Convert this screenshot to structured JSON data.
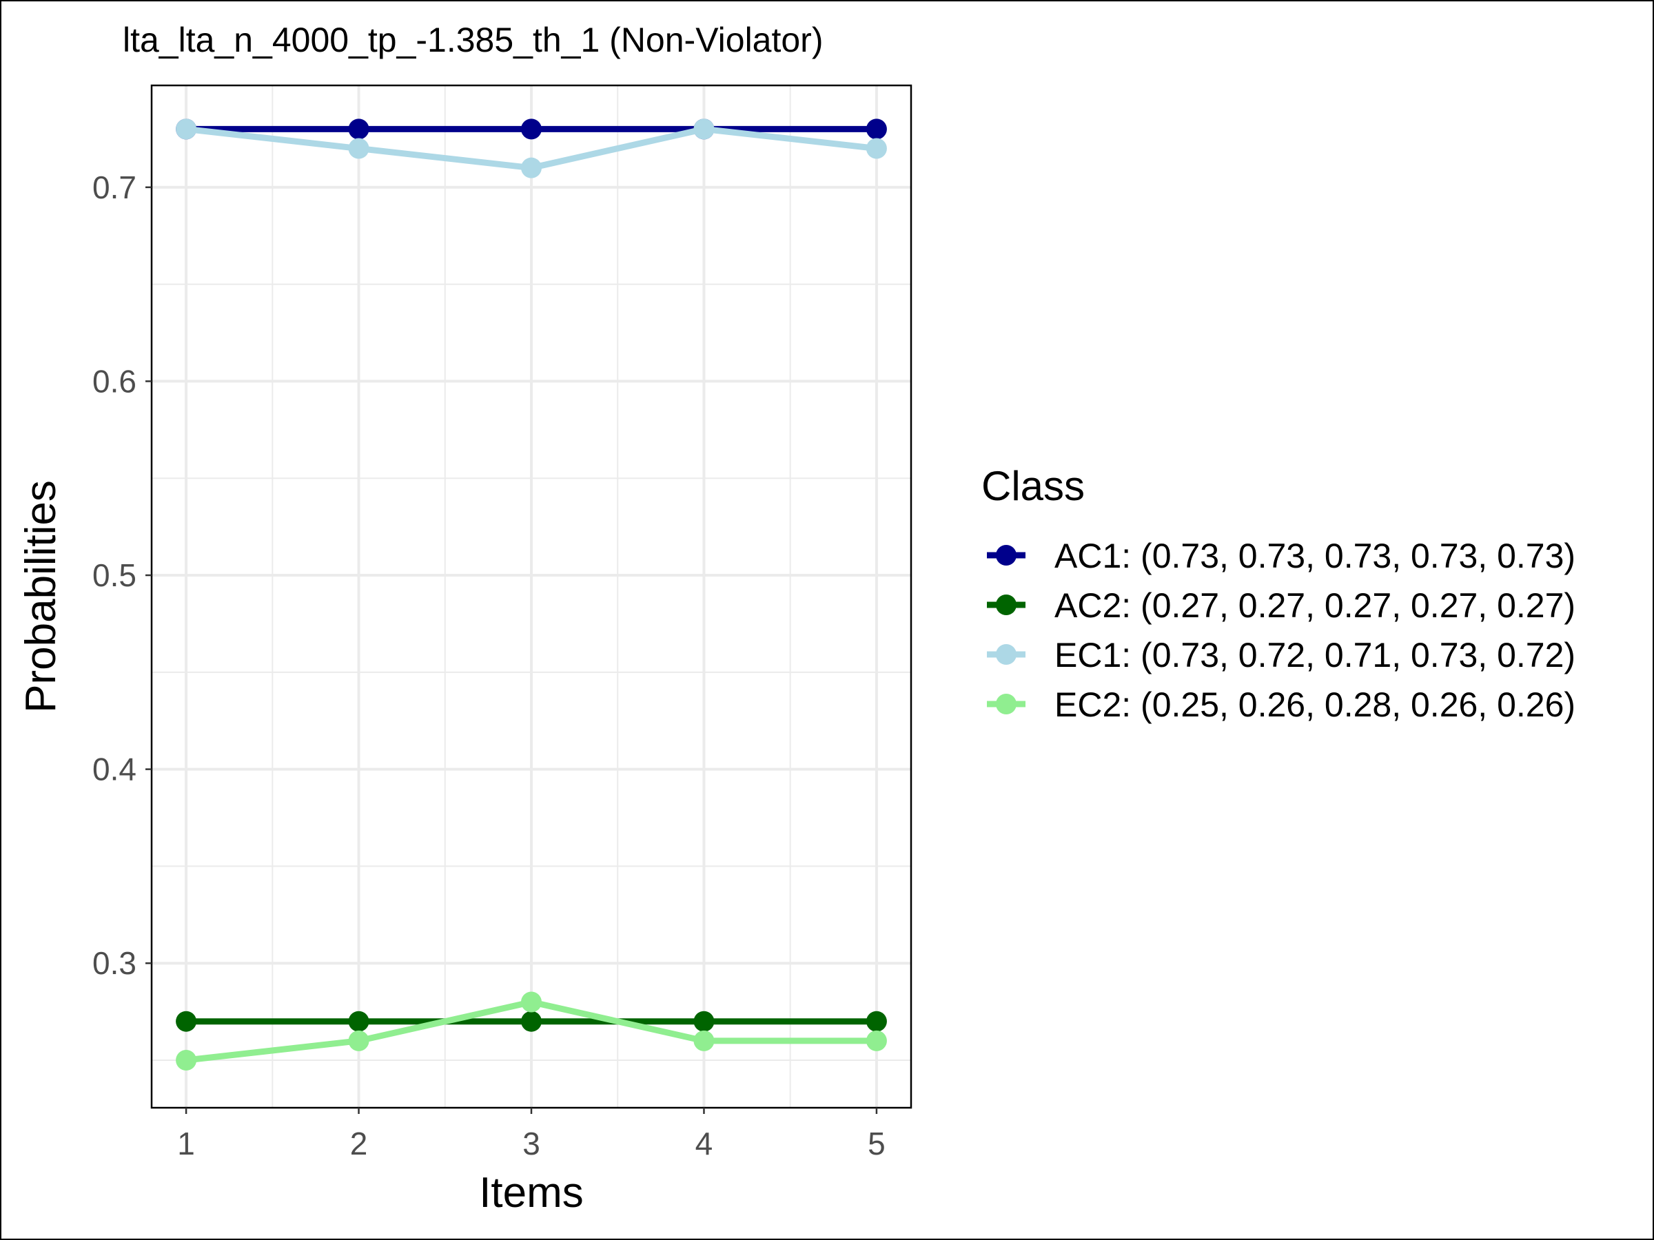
{
  "chart_data": {
    "type": "line",
    "title": "lta_lta_n_4000_tp_-1.385_th_1 (Non-Violator)",
    "xlabel": "Items",
    "ylabel": "Probabilities",
    "x": [
      1,
      2,
      3,
      4,
      5
    ],
    "x_tick_labels": [
      "1",
      "2",
      "3",
      "4",
      "5"
    ],
    "xlim": [
      0.8,
      5.2
    ],
    "ylim": [
      0.2255,
      0.7525
    ],
    "y_ticks": [
      0.3,
      0.4,
      0.5,
      0.6,
      0.7
    ],
    "y_tick_labels": [
      "0.3",
      "0.4",
      "0.5",
      "0.6",
      "0.7"
    ],
    "grid": true,
    "legend": {
      "title": "Class",
      "placement": "right"
    },
    "series": [
      {
        "name": "AC1",
        "label": "AC1: (0.73, 0.73, 0.73, 0.73, 0.73)",
        "color": "#00008B",
        "values": [
          0.73,
          0.73,
          0.73,
          0.73,
          0.73
        ]
      },
      {
        "name": "AC2",
        "label": "AC2: (0.27, 0.27, 0.27, 0.27, 0.27)",
        "color": "#006400",
        "values": [
          0.27,
          0.27,
          0.27,
          0.27,
          0.27
        ]
      },
      {
        "name": "EC1",
        "label": "EC1: (0.73, 0.72, 0.71, 0.73, 0.72)",
        "color": "#ADD8E6",
        "values": [
          0.73,
          0.72,
          0.71,
          0.73,
          0.72
        ]
      },
      {
        "name": "EC2",
        "label": "EC2: (0.25, 0.26, 0.28, 0.26, 0.26)",
        "color": "#90EE90",
        "values": [
          0.25,
          0.26,
          0.28,
          0.26,
          0.26
        ]
      }
    ]
  }
}
